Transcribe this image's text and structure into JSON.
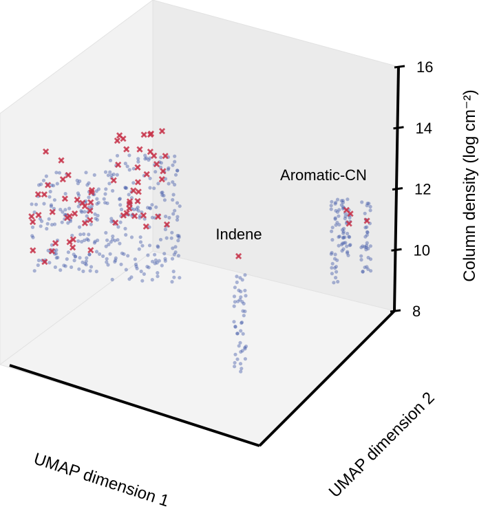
{
  "chart_data": {
    "type": "scatter",
    "projection": "3d",
    "title": "",
    "xlabel": "UMAP dimension 1",
    "ylabel": "UMAP dimension 2",
    "zlabel": "Column density (log cm⁻²)",
    "zlim": [
      8,
      16
    ],
    "z_ticks": [
      "8",
      "10",
      "12",
      "14",
      "16"
    ],
    "grid": false,
    "legend": "none",
    "annotations": [
      "Indene",
      "Aromatic-CN"
    ],
    "series": [
      {
        "marker": "circle",
        "color": "#3d55a8",
        "clusters": [
          {
            "count": 150,
            "z_range": [
              9.0,
              13.0
            ]
          },
          {
            "count": 180,
            "z_range": [
              9.0,
              13.5
            ]
          },
          {
            "count": 45,
            "z_range": [
              8.2,
              11.5
            ]
          },
          {
            "count": 35,
            "z_range": [
              8.5,
              12.0
            ]
          },
          {
            "count": 40,
            "z_range": [
              8.5,
              12.0
            ]
          },
          {
            "count": 35,
            "z_range": [
              8.5,
              12.0
            ]
          }
        ]
      },
      {
        "marker": "x",
        "color": "#c7344a",
        "clusters": [
          {
            "count": 32,
            "z_range": [
              9.3,
              13.6
            ]
          },
          {
            "count": 34,
            "z_range": [
              10.2,
              15.0
            ]
          },
          {
            "count": 1,
            "z_range": [
              11.7,
              11.7
            ]
          },
          {
            "count": 4,
            "z_range": [
              10.5,
              12.5
            ]
          }
        ]
      }
    ]
  }
}
